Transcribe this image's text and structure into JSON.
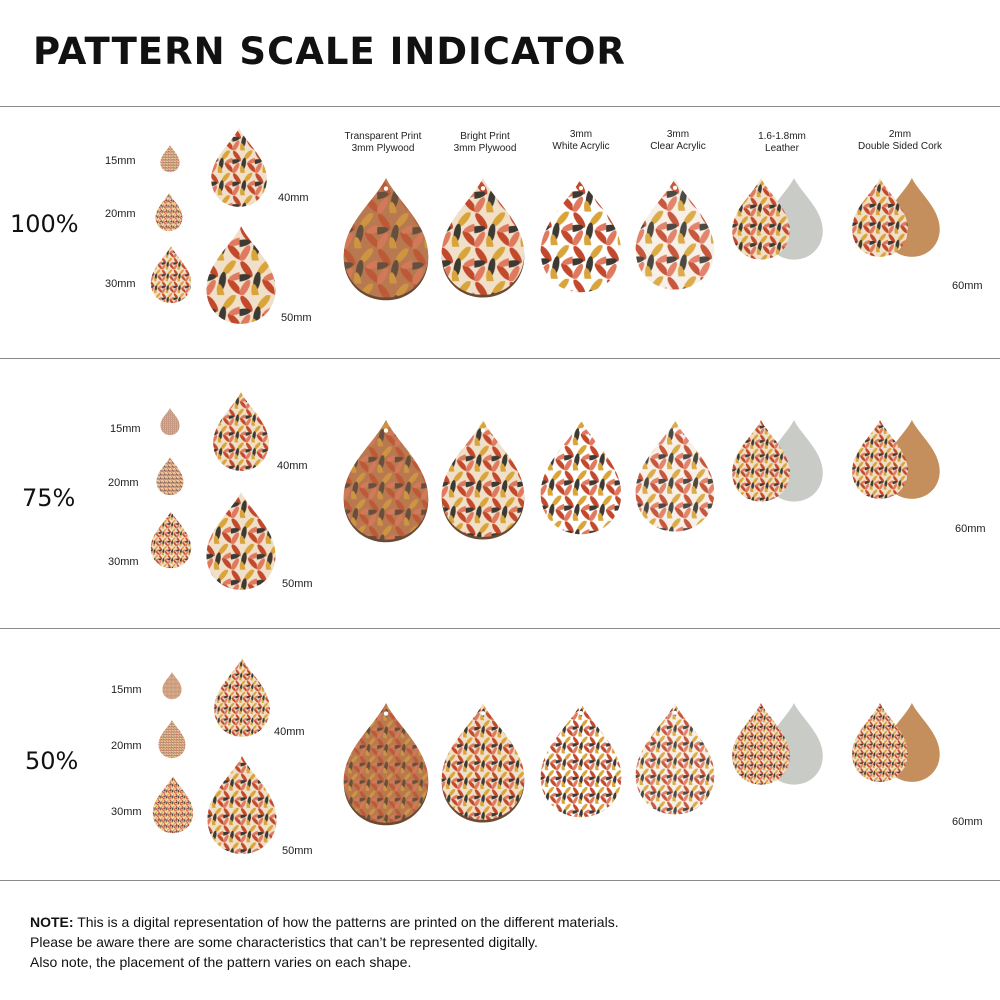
{
  "title": "PATTERN SCALE INDICATOR",
  "columns": [
    {
      "line1": "Transparent Print",
      "line2": "3mm Plywood"
    },
    {
      "line1": "Bright Print",
      "line2": "3mm Plywood"
    },
    {
      "line1": "3mm",
      "line2": "White Acrylic"
    },
    {
      "line1": "3mm",
      "line2": "Clear Acrylic"
    },
    {
      "line1": "1.6-1.8mm",
      "line2": "Leather"
    },
    {
      "line1": "2mm",
      "line2": "Double Sided Cork"
    }
  ],
  "sizes": [
    "15mm",
    "20mm",
    "30mm",
    "40mm",
    "50mm",
    "60mm"
  ],
  "rows": [
    {
      "scale": "100%"
    },
    {
      "scale": "75%"
    },
    {
      "scale": "50%"
    }
  ],
  "colors": {
    "wood": "#b87850",
    "wood_dark": "#6b4a34",
    "leather_back": "#c9cbc7",
    "cork": "#c48f5c",
    "orange": "#d9a43a",
    "salmon": "#e07a5f",
    "red": "#c2492c",
    "dark_leaf": "#3d3a33",
    "cream": "#f1e0c9"
  },
  "note": {
    "label": "NOTE:",
    "line1": "This is a digital representation of how the patterns are printed on the different materials.",
    "line2": "Please be aware there are some characteristics that can’t be represented digitally.",
    "line3": "Also note, the placement of the pattern varies on each shape."
  }
}
